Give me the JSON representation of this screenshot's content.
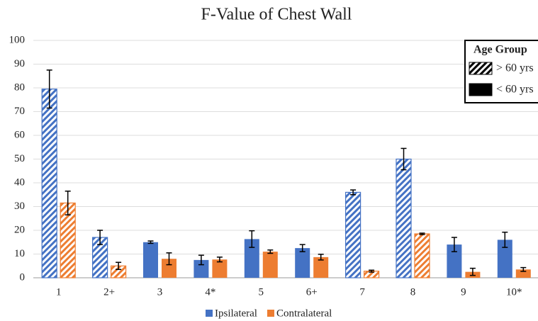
{
  "chart_data": {
    "type": "bar",
    "title": "F-Value of Chest Wall",
    "categories": [
      "1",
      "2+",
      "3",
      "4*",
      "5",
      "6+",
      "7",
      "8",
      "9",
      "10*"
    ],
    "series": [
      {
        "name": "Ipsilateral",
        "color": "#4472c4",
        "values": [
          79.5,
          17,
          15,
          7.5,
          16.3,
          12.5,
          36,
          50,
          14,
          16
        ],
        "errors": [
          8,
          3,
          0.5,
          2,
          3.5,
          1.5,
          1,
          4.5,
          3,
          3.2
        ]
      },
      {
        "name": "Contralateral",
        "color": "#ed7d31",
        "values": [
          31.5,
          5,
          8,
          7.7,
          11,
          8.7,
          2.8,
          18.5,
          2.5,
          3.5
        ],
        "errors": [
          5,
          1.5,
          2.5,
          1,
          0.7,
          1.2,
          0.4,
          0.3,
          1.5,
          0.8
        ]
      }
    ],
    "age_legend_title": "Age Group",
    "age_groups": [
      {
        "name": "> 60 yrs",
        "pattern": "hatch"
      },
      {
        "name": "< 60 yrs",
        "pattern": "solid"
      }
    ],
    "category_age_group": [
      0,
      0,
      1,
      1,
      1,
      1,
      0,
      0,
      1,
      1
    ],
    "ylim": [
      0,
      100
    ],
    "yticks": [
      0,
      10,
      20,
      30,
      40,
      50,
      60,
      70,
      80,
      90,
      100
    ],
    "grid": true
  }
}
